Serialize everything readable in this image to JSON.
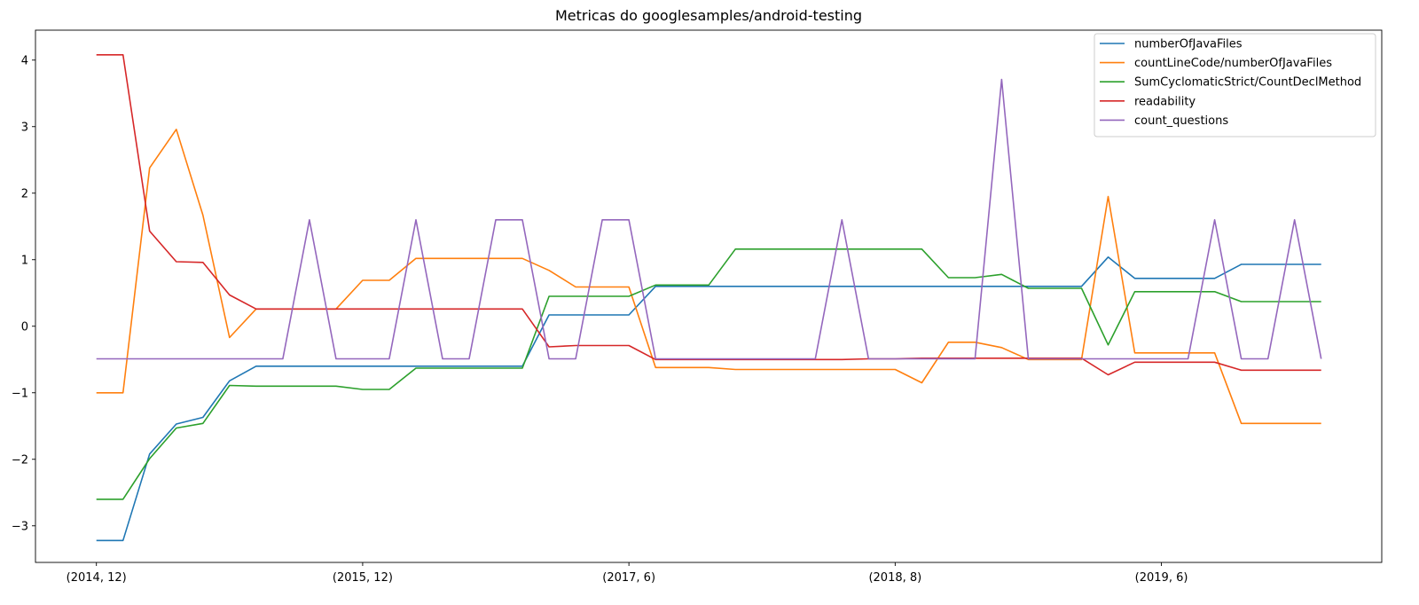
{
  "chart_data": {
    "type": "line",
    "title": "Metricas do googlesamples/android-testing",
    "xlabel": "",
    "ylabel": "",
    "x_tick_labels": [
      {
        "index": 0,
        "label": "(2014, 12)"
      },
      {
        "index": 10,
        "label": "(2015, 12)"
      },
      {
        "index": 20,
        "label": "(2017, 6)"
      },
      {
        "index": 30,
        "label": "(2018, 8)"
      },
      {
        "index": 40,
        "label": "(2019, 6)"
      }
    ],
    "x_count": 47,
    "ylim": [
      -3.55,
      4.45
    ],
    "yticks": [
      -3,
      -2,
      -1,
      0,
      1,
      2,
      3,
      4
    ],
    "ytick_labels": [
      "−3",
      "−2",
      "−1",
      "0",
      "1",
      "2",
      "3",
      "4"
    ],
    "grid": false,
    "legend_position": "top-right",
    "series": [
      {
        "name": "numberOfJavaFiles",
        "color": "#1f77b4",
        "values": [
          -3.22,
          -3.22,
          -1.92,
          -1.47,
          -1.37,
          -0.82,
          -0.6,
          -0.6,
          -0.6,
          -0.6,
          -0.6,
          -0.6,
          -0.6,
          -0.6,
          -0.6,
          -0.6,
          -0.6,
          0.17,
          0.17,
          0.17,
          0.17,
          0.6,
          0.6,
          0.6,
          0.6,
          0.6,
          0.6,
          0.6,
          0.6,
          0.6,
          0.6,
          0.6,
          0.6,
          0.6,
          0.6,
          0.6,
          0.6,
          0.6,
          1.04,
          0.72,
          0.72,
          0.72,
          0.72,
          0.93,
          0.93,
          0.93,
          0.93
        ]
      },
      {
        "name": "countLineCode/numberOfJavaFiles",
        "color": "#ff7f0e",
        "values": [
          -1.0,
          -1.0,
          2.38,
          2.96,
          1.67,
          -0.17,
          0.26,
          0.26,
          0.26,
          0.26,
          0.69,
          0.69,
          1.02,
          1.02,
          1.02,
          1.02,
          1.02,
          0.84,
          0.59,
          0.59,
          0.59,
          -0.62,
          -0.62,
          -0.62,
          -0.65,
          -0.65,
          -0.65,
          -0.65,
          -0.65,
          -0.65,
          -0.65,
          -0.85,
          -0.24,
          -0.24,
          -0.32,
          -0.5,
          -0.5,
          -0.5,
          1.95,
          -0.4,
          -0.4,
          -0.4,
          -0.4,
          -1.46,
          -1.46,
          -1.46,
          -1.46
        ]
      },
      {
        "name": "SumCyclomaticStrict/CountDeclMethod",
        "color": "#2ca02c",
        "values": [
          -2.6,
          -2.6,
          -1.99,
          -1.53,
          -1.46,
          -0.89,
          -0.9,
          -0.9,
          -0.9,
          -0.9,
          -0.95,
          -0.95,
          -0.63,
          -0.63,
          -0.63,
          -0.63,
          -0.63,
          0.45,
          0.45,
          0.45,
          0.45,
          0.62,
          0.62,
          0.62,
          1.16,
          1.16,
          1.16,
          1.16,
          1.16,
          1.16,
          1.16,
          1.16,
          0.73,
          0.73,
          0.78,
          0.57,
          0.57,
          0.57,
          -0.28,
          0.52,
          0.52,
          0.52,
          0.52,
          0.37,
          0.37,
          0.37,
          0.37
        ]
      },
      {
        "name": "readability",
        "color": "#d62728",
        "values": [
          4.08,
          4.08,
          1.43,
          0.97,
          0.96,
          0.47,
          0.26,
          0.26,
          0.26,
          0.26,
          0.26,
          0.26,
          0.26,
          0.26,
          0.26,
          0.26,
          0.26,
          -0.31,
          -0.29,
          -0.29,
          -0.29,
          -0.5,
          -0.5,
          -0.5,
          -0.5,
          -0.5,
          -0.5,
          -0.5,
          -0.5,
          -0.49,
          -0.49,
          -0.48,
          -0.48,
          -0.48,
          -0.48,
          -0.48,
          -0.48,
          -0.48,
          -0.73,
          -0.54,
          -0.54,
          -0.54,
          -0.54,
          -0.66,
          -0.66,
          -0.66,
          -0.66
        ]
      },
      {
        "name": "count_questions",
        "color": "#9467bd",
        "values": [
          -0.49,
          -0.49,
          -0.49,
          -0.49,
          -0.49,
          -0.49,
          -0.49,
          -0.49,
          1.6,
          -0.49,
          -0.49,
          -0.49,
          1.6,
          -0.49,
          -0.49,
          1.6,
          1.6,
          -0.49,
          -0.49,
          1.6,
          1.6,
          -0.49,
          -0.49,
          -0.49,
          -0.49,
          -0.49,
          -0.49,
          -0.49,
          1.6,
          -0.49,
          -0.49,
          -0.49,
          -0.49,
          -0.49,
          3.71,
          -0.49,
          -0.49,
          -0.49,
          -0.49,
          -0.49,
          -0.49,
          -0.49,
          1.6,
          -0.49,
          -0.49,
          1.6,
          -0.49
        ]
      }
    ]
  }
}
